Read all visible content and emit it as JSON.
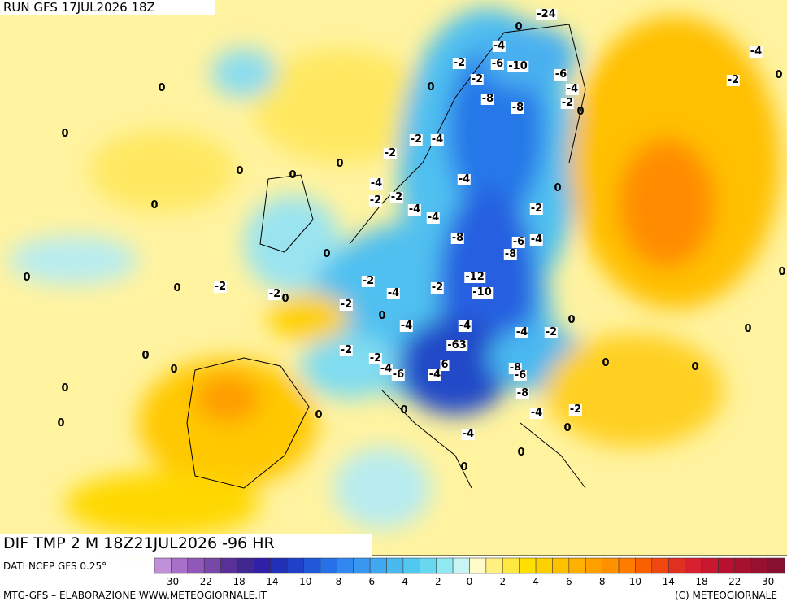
{
  "header": {
    "run": "RUN GFS 17JUL2026 18Z"
  },
  "footer": {
    "title": "DIF TMP 2 M 18Z21JUL2026 -96 HR",
    "source": "DATI NCEP GFS 0.25°",
    "credit": "MTG-GFS – ELABORAZIONE WWW.METEOGIORNALE.IT",
    "copyright": "(C) METEOGIORNALE"
  },
  "legend": {
    "colors": [
      "#c090d8",
      "#a870c8",
      "#9058b8",
      "#7848a8",
      "#583098",
      "#402890",
      "#3020a8",
      "#2030b8",
      "#2040c8",
      "#2058d8",
      "#2870e8",
      "#3088f0",
      "#3898f0",
      "#40a8f0",
      "#48b8f0",
      "#50c8f0",
      "#68d8f0",
      "#90e8f0",
      "#c8f4f4",
      "#fffac8",
      "#fff080",
      "#ffe840",
      "#ffe000",
      "#ffd000",
      "#ffc000",
      "#ffb000",
      "#ffa000",
      "#ff9000",
      "#ff7c00",
      "#f86000",
      "#f04810",
      "#e03020",
      "#d82030",
      "#c81830",
      "#b81030",
      "#a81030",
      "#981030",
      "#881030"
    ],
    "ticks": [
      -30,
      -22,
      -18,
      -14,
      -10,
      -8,
      -6,
      -4,
      -2,
      0,
      2,
      4,
      6,
      8,
      10,
      14,
      18,
      22,
      30
    ]
  },
  "map": {
    "labels": [
      "-24",
      "0",
      "-4",
      "-2",
      "-6",
      "-10",
      "-6",
      "0",
      "-2",
      "-4",
      "-8",
      "-2",
      "0",
      "-8",
      "0",
      "0",
      "-2",
      "-4",
      "-2",
      "0",
      "0",
      "0",
      "-4",
      "-4",
      "-2",
      "-2",
      "0",
      "0",
      "-4",
      "-4",
      "-2",
      "-8",
      "-6",
      "-4",
      "-8",
      "0",
      "0",
      "-2",
      "-12",
      "-2",
      "-2",
      "0",
      "-2",
      "0",
      "-4",
      "-10",
      "-2",
      "0",
      "-4",
      "-4",
      "-4",
      "-2",
      "0",
      "-63",
      "-2",
      "-2",
      "0",
      "0",
      "-4",
      "-6",
      "-4",
      "6",
      "-8",
      "-6",
      "0",
      "0",
      "-8",
      "0",
      "0",
      "0",
      "-2",
      "-4",
      "0",
      "0",
      "-4",
      "0",
      "0",
      "0",
      "0",
      "-2",
      "-4",
      "0"
    ]
  }
}
